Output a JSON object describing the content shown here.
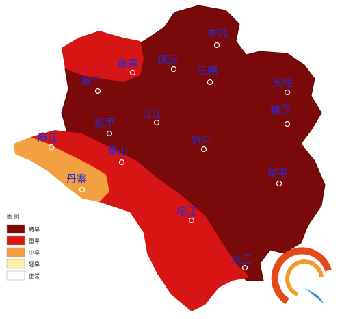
{
  "legend": {
    "title": "图 例",
    "items": [
      {
        "label": "特旱",
        "color": "#7a0a0a"
      },
      {
        "label": "重旱",
        "color": "#d81515"
      },
      {
        "label": "中旱",
        "color": "#f2a040"
      },
      {
        "label": "轻旱",
        "color": "#fff0b0"
      },
      {
        "label": "正常",
        "color": "#ffffff"
      }
    ]
  },
  "places": [
    "岑巩",
    "施秉",
    "镇远",
    "三穗",
    "天柱",
    "黄平",
    "锦屏",
    "台江",
    "凯里",
    "麻江",
    "雷山",
    "剑河",
    "丹寨",
    "黎平",
    "榕江",
    "从江"
  ]
}
